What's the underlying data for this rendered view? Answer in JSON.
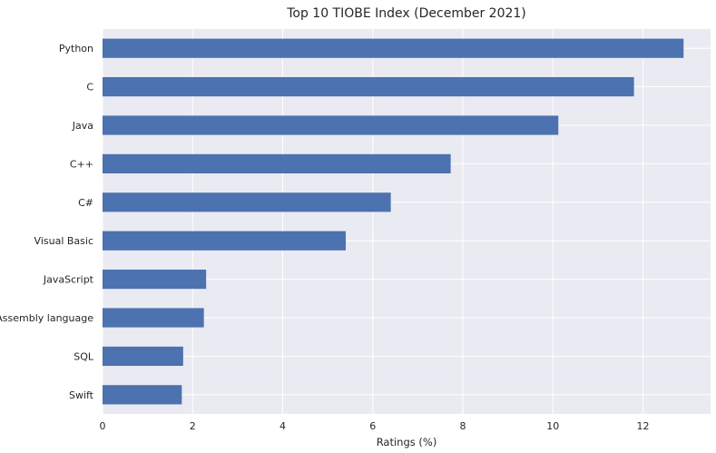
{
  "chart_data": {
    "type": "bar",
    "orientation": "horizontal",
    "title": "Top 10 TIOBE Index (December 2021)",
    "xlabel": "Ratings (%)",
    "ylabel": "",
    "categories": [
      "Python",
      "C",
      "Java",
      "C++",
      "C#",
      "Visual Basic",
      "JavaScript",
      "Assembly language",
      "SQL",
      "Swift"
    ],
    "values": [
      12.9,
      11.8,
      10.12,
      7.73,
      6.4,
      5.4,
      2.3,
      2.25,
      1.79,
      1.76
    ],
    "xlim": [
      0,
      13.5
    ],
    "xticks": [
      "0",
      "2",
      "4",
      "6",
      "8",
      "10",
      "12"
    ],
    "grid": true,
    "bar_color": "#4c72b0",
    "background_color": "#eaeaf2",
    "grid_color": "#ffffff"
  }
}
